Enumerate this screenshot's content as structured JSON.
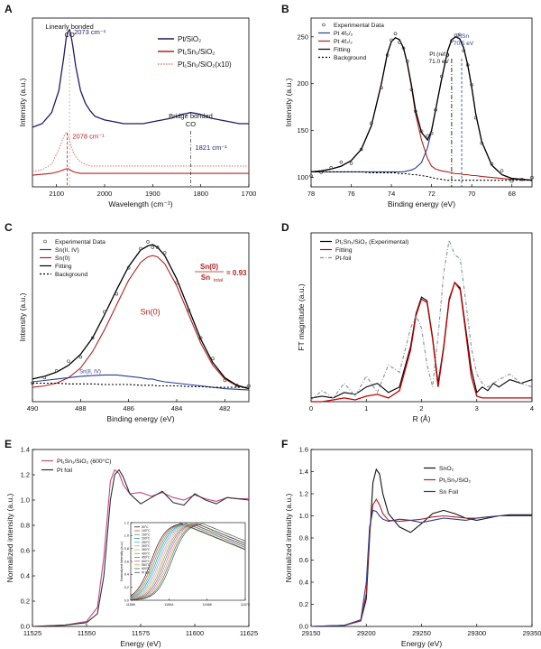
{
  "figure": {
    "panel_letters": [
      "A",
      "B",
      "C",
      "D",
      "E",
      "F"
    ]
  },
  "chart_data": [
    {
      "id": "A",
      "type": "line",
      "xlabel": "Wavelength (cm⁻¹)",
      "ylabel": "Intensity (a.u.)",
      "xlim": [
        2150,
        1700
      ],
      "xticks": [
        2100,
        2000,
        1900,
        1800,
        1700
      ],
      "x": [
        2150,
        2130,
        2110,
        2095,
        2085,
        2080,
        2076,
        2073,
        2070,
        2066,
        2060,
        2050,
        2040,
        2030,
        2020,
        2000,
        1980,
        1960,
        1940,
        1920,
        1900,
        1880,
        1860,
        1840,
        1830,
        1821,
        1810,
        1800,
        1790,
        1780,
        1760,
        1740,
        1720,
        1700
      ],
      "series": [
        {
          "name": "Pt/SiO₂",
          "color": "#1f1a66",
          "values": [
            0.3,
            0.32,
            0.38,
            0.5,
            0.68,
            0.78,
            0.82,
            0.83,
            0.8,
            0.74,
            0.63,
            0.5,
            0.43,
            0.39,
            0.36,
            0.34,
            0.33,
            0.32,
            0.32,
            0.32,
            0.33,
            0.34,
            0.35,
            0.37,
            0.375,
            0.38,
            0.375,
            0.37,
            0.36,
            0.35,
            0.34,
            0.33,
            0.32,
            0.32
          ]
        },
        {
          "name": "Pt₁Sn₁/SiO₂",
          "color": "#b22222",
          "values": [
            0.04,
            0.045,
            0.05,
            0.06,
            0.07,
            0.075,
            0.075,
            0.072,
            0.066,
            0.06,
            0.055,
            0.05,
            0.05,
            0.05,
            0.05,
            0.05,
            0.05,
            0.05,
            0.05,
            0.05,
            0.05,
            0.05,
            0.05,
            0.05,
            0.05,
            0.05,
            0.05,
            0.05,
            0.05,
            0.05,
            0.05,
            0.05,
            0.05,
            0.05
          ]
        },
        {
          "name": "Pt₁Sn₁/SiO₂(x10)",
          "color": "#e07f6a",
          "values": [
            0.06,
            0.07,
            0.1,
            0.18,
            0.25,
            0.27,
            0.26,
            0.23,
            0.2,
            0.17,
            0.14,
            0.11,
            0.1,
            0.09,
            0.09,
            0.09,
            0.09,
            0.09,
            0.09,
            0.09,
            0.09,
            0.09,
            0.09,
            0.09,
            0.09,
            0.09,
            0.09,
            0.09,
            0.09,
            0.09,
            0.09,
            0.09,
            0.09,
            0.09
          ]
        }
      ],
      "annotations": {
        "linear_title": "Linearly bonded",
        "linear_co": "CO",
        "peak_blue": "2073 cm⁻¹",
        "peak_red": "2078 cm⁻¹",
        "bridge_title": "Bridge bonded",
        "bridge_co": "CO",
        "peak_bridge": "1821 cm⁻¹"
      }
    },
    {
      "id": "B",
      "type": "line",
      "xlabel": "Binding energy (eV)",
      "ylabel": "Intensity (a.u.)",
      "xlim": [
        78,
        67
      ],
      "ylim": [
        90,
        270
      ],
      "xticks": [
        78,
        76,
        74,
        72,
        70,
        68
      ],
      "yticks": [
        100,
        150,
        200,
        250
      ],
      "legend": [
        "Experimental Data",
        "Pt 4f₅/₂",
        "Pt 4f₇/₂",
        "Fitting",
        "Background"
      ],
      "x": [
        78,
        77.5,
        77,
        76.5,
        76,
        75.5,
        75,
        74.5,
        74.2,
        74,
        73.8,
        73.6,
        73.4,
        73.2,
        73,
        72.8,
        72.5,
        72.2,
        72,
        71.8,
        71.5,
        71.2,
        71,
        70.8,
        70.6,
        70.4,
        70.2,
        70,
        69.8,
        69.5,
        69,
        68.5,
        68,
        67.5,
        67
      ],
      "series": [
        {
          "name": "Pt 4f₇/₂",
          "color": "#b22222",
          "values": [
            106,
            107,
            109,
            112,
            118,
            130,
            155,
            200,
            232,
            245,
            249,
            247,
            238,
            220,
            196,
            168,
            140,
            120,
            112,
            109,
            107,
            106,
            105,
            104,
            104,
            103,
            103,
            102,
            102,
            101,
            100,
            99,
            98,
            98,
            97
          ]
        },
        {
          "name": "Pt 4f₅/₂",
          "color": "#2a3d8f",
          "values": [
            106,
            106,
            106,
            106,
            106,
            106,
            106,
            106,
            106,
            106,
            106,
            106,
            106,
            107,
            108,
            110,
            116,
            132,
            150,
            172,
            205,
            235,
            247,
            250,
            248,
            238,
            220,
            196,
            168,
            138,
            113,
            103,
            99,
            98,
            97
          ]
        },
        {
          "name": "Fitting",
          "color": "#000000",
          "values": [
            106,
            107,
            109,
            112,
            118,
            130,
            155,
            200,
            232,
            245,
            249,
            247,
            238,
            221,
            198,
            172,
            148,
            140,
            150,
            172,
            205,
            235,
            247,
            250,
            248,
            238,
            220,
            196,
            168,
            138,
            113,
            103,
            99,
            98,
            97
          ]
        },
        {
          "name": "Background",
          "color": "#000000",
          "values": [
            106,
            106,
            106,
            106,
            106,
            106,
            105,
            105,
            105,
            105,
            105,
            104,
            104,
            104,
            103,
            103,
            102,
            101,
            100,
            99,
            98,
            97,
            97,
            97,
            97,
            97,
            97,
            97,
            97,
            97,
            97,
            97,
            97,
            97,
            97
          ]
        }
      ],
      "annotations": {
        "ref_line": "Pt (ref.)",
        "ref_value": "71.0 eV",
        "ptsn_label": "PtSn",
        "ptsn_value": "70.5 eV"
      }
    },
    {
      "id": "C",
      "type": "line",
      "xlabel": "Binding energy (eV)",
      "ylabel": "Intensity (a.u.)",
      "xlim": [
        490,
        481
      ],
      "xticks": [
        490,
        488,
        486,
        484,
        482
      ],
      "legend": [
        "Experimental Data",
        "Sn(II, IV)",
        "Sn(0)",
        "Fitting",
        "Background"
      ],
      "x": [
        490,
        489.5,
        489,
        488.5,
        488,
        487.5,
        487,
        486.5,
        486,
        485.5,
        485.2,
        485,
        484.8,
        484.5,
        484,
        483.5,
        483,
        482.5,
        482,
        481.5,
        481
      ],
      "series": [
        {
          "name": "Sn(0)",
          "color": "#b22222",
          "values": [
            0.02,
            0.03,
            0.05,
            0.09,
            0.16,
            0.28,
            0.44,
            0.62,
            0.8,
            0.93,
            0.97,
            0.98,
            0.97,
            0.92,
            0.76,
            0.55,
            0.34,
            0.18,
            0.08,
            0.03,
            0.01
          ]
        },
        {
          "name": "Sn(II, IV)",
          "color": "#2a3d8f",
          "values": [
            0.06,
            0.07,
            0.08,
            0.09,
            0.1,
            0.105,
            0.11,
            0.11,
            0.1,
            0.09,
            0.08,
            0.08,
            0.07,
            0.06,
            0.05,
            0.04,
            0.03,
            0.02,
            0.01,
            0.005,
            0.0
          ]
        },
        {
          "name": "Fitting",
          "color": "#000000",
          "values": [
            0.08,
            0.1,
            0.13,
            0.18,
            0.26,
            0.38,
            0.55,
            0.73,
            0.9,
            1.02,
            1.05,
            1.06,
            1.04,
            0.98,
            0.81,
            0.59,
            0.37,
            0.2,
            0.09,
            0.035,
            0.01
          ]
        },
        {
          "name": "Background",
          "color": "#000000",
          "values": [
            0.05,
            0.05,
            0.05,
            0.045,
            0.045,
            0.045,
            0.04,
            0.04,
            0.04,
            0.035,
            0.035,
            0.035,
            0.03,
            0.03,
            0.03,
            0.025,
            0.025,
            0.02,
            0.02,
            0.02,
            0.02
          ]
        }
      ],
      "annotations": {
        "sn0_label": "Sn(0)",
        "sniv_label": "Sn(II, IV)",
        "ratio_num": "Sn(0)",
        "ratio_den": "Sn",
        "ratio_den_sub": "total",
        "ratio_value": "= 0.93"
      }
    },
    {
      "id": "D",
      "type": "line",
      "xlabel": "R (Å)",
      "ylabel": "FT magnitude (a.u.)",
      "xlim": [
        0,
        4
      ],
      "ylim": [
        0,
        0.92
      ],
      "xticks": [
        0,
        1,
        2,
        3,
        4
      ],
      "legend": [
        "Pt₁Sn₁/SiO₂ (Experimental)",
        "Fitting",
        "Pt-foil"
      ],
      "x": [
        0,
        0.2,
        0.4,
        0.6,
        0.8,
        1.0,
        1.2,
        1.4,
        1.6,
        1.8,
        1.9,
        2.0,
        2.1,
        2.2,
        2.3,
        2.4,
        2.5,
        2.6,
        2.7,
        2.8,
        2.9,
        3.0,
        3.1,
        3.2,
        3.3,
        3.4,
        3.6,
        3.8,
        4.0
      ],
      "series": [
        {
          "name": "Pt₁Sn₁/SiO₂ (Experimental)",
          "color": "#000000",
          "values": [
            0.02,
            0.03,
            0.02,
            0.05,
            0.04,
            0.08,
            0.1,
            0.05,
            0.08,
            0.3,
            0.48,
            0.57,
            0.55,
            0.35,
            0.1,
            0.3,
            0.56,
            0.65,
            0.62,
            0.4,
            0.18,
            0.05,
            0.08,
            0.06,
            0.1,
            0.08,
            0.12,
            0.1,
            0.12
          ]
        },
        {
          "name": "Fitting",
          "color": "#c00000",
          "values": [
            0.0,
            0.0,
            0.01,
            0.02,
            0.01,
            0.03,
            0.04,
            0.02,
            0.06,
            0.28,
            0.47,
            0.56,
            0.54,
            0.34,
            0.08,
            0.29,
            0.55,
            0.65,
            0.61,
            0.38,
            0.14,
            0.03,
            0.02,
            0.02,
            0.02,
            0.02,
            0.02,
            0.02,
            0.02
          ]
        },
        {
          "name": "Pt-foil",
          "color": "#8890a0",
          "values": [
            0.01,
            0.06,
            0.02,
            0.1,
            0.03,
            0.14,
            0.05,
            0.2,
            0.16,
            0.4,
            0.47,
            0.4,
            0.2,
            0.08,
            0.36,
            0.7,
            0.88,
            0.8,
            0.78,
            0.55,
            0.3,
            0.15,
            0.1,
            0.08,
            0.1,
            0.12,
            0.15,
            0.1,
            0.08
          ]
        }
      ]
    },
    {
      "id": "E",
      "type": "line",
      "xlabel": "Energy (eV)",
      "ylabel": "Normalized intensity (a.u.)",
      "xlim": [
        11525,
        11625
      ],
      "ylim": [
        0,
        1.4
      ],
      "xticks": [
        11525,
        11550,
        11575,
        11600,
        11625
      ],
      "yticks": [
        0.0,
        0.2,
        0.4,
        0.6,
        0.8,
        1.0,
        1.2,
        1.4
      ],
      "legend": [
        "Pt₁Sn₁/SiO₂ (600°C)",
        "Pt foil"
      ],
      "x": [
        11525,
        11540,
        11550,
        11555,
        11558,
        11561,
        11563,
        11565,
        11567,
        11570,
        11575,
        11580,
        11585,
        11590,
        11595,
        11600,
        11605,
        11610,
        11615,
        11620,
        11625
      ],
      "series": [
        {
          "name": "Pt₁Sn₁/SiO₂ (600°C)",
          "color": "#c04a8a",
          "values": [
            0.0,
            0.01,
            0.04,
            0.15,
            0.55,
            1.15,
            1.24,
            1.21,
            1.12,
            1.05,
            1.06,
            1.03,
            1.06,
            1.02,
            1.0,
            1.04,
            1.01,
            0.99,
            1.02,
            1.01,
            1.01
          ]
        },
        {
          "name": "Pt foil",
          "color": "#303030",
          "values": [
            0.0,
            0.01,
            0.03,
            0.1,
            0.4,
            1.0,
            1.2,
            1.24,
            1.18,
            1.05,
            0.97,
            1.02,
            1.07,
            0.98,
            0.96,
            1.05,
            1.0,
            0.97,
            1.02,
            1.01,
            1.0
          ]
        }
      ],
      "inset": {
        "xlim": [
          11560,
          11572
        ],
        "ylim": [
          0.0,
          1.2
        ],
        "ylabel": "Normalized intensity (a.u.)",
        "xticks": [
          11560,
          11564,
          11568,
          11572
        ],
        "yticks": [
          0.0,
          0.2,
          0.4,
          0.6,
          0.8,
          1.0,
          1.2
        ],
        "legend": [
          "50°C",
          "100°C",
          "150°C",
          "200°C",
          "250°C",
          "300°C",
          "350°C",
          "400°C",
          "450°C",
          "500°C",
          "550°C",
          "600°C",
          "Pt foil"
        ],
        "legend_colors": [
          "#000000",
          "#d62728",
          "#2ca02c",
          "#1f77b4",
          "#17becf",
          "#e377c2",
          "#bcbd22",
          "#7f7f7f",
          "#8c564b",
          "#9467bd",
          "#ff7f0e",
          "#006d6d",
          "#333333"
        ]
      }
    },
    {
      "id": "F",
      "type": "line",
      "xlabel": "Energy (eV)",
      "ylabel": "Normalized intensity (a.u.)",
      "xlim": [
        29150,
        29350
      ],
      "ylim": [
        0,
        1.6
      ],
      "xticks": [
        29150,
        29200,
        29250,
        29300,
        29350
      ],
      "yticks": [
        0.0,
        0.2,
        0.4,
        0.6,
        0.8,
        1.0,
        1.2,
        1.4,
        1.6
      ],
      "legend": [
        "SnO₂",
        "Pt₁Sn₁/SiO₂",
        "Sn Foil"
      ],
      "x": [
        29150,
        29180,
        29195,
        29200,
        29203,
        29206,
        29209,
        29212,
        29215,
        29220,
        29230,
        29240,
        29250,
        29260,
        29270,
        29280,
        29290,
        29300,
        29310,
        29320,
        29330,
        29340,
        29350
      ],
      "series": [
        {
          "name": "SnO₂",
          "color": "#111111",
          "values": [
            0.0,
            0.01,
            0.05,
            0.25,
            0.8,
            1.3,
            1.42,
            1.38,
            1.2,
            1.02,
            0.9,
            0.85,
            0.93,
            1.02,
            1.05,
            1.02,
            0.98,
            0.96,
            0.98,
            1.0,
            1.01,
            1.01,
            1.01
          ]
        },
        {
          "name": "Pt₁Sn₁/SiO₂",
          "color": "#b22222",
          "values": [
            0.0,
            0.01,
            0.05,
            0.3,
            0.85,
            1.1,
            1.15,
            1.1,
            1.02,
            0.96,
            0.95,
            0.96,
            0.97,
            0.99,
            1.0,
            0.99,
            0.98,
            0.98,
            0.99,
            1.0,
            1.0,
            1.0,
            1.0
          ]
        },
        {
          "name": "Sn Foil",
          "color": "#2a3d8f",
          "values": [
            0.0,
            0.01,
            0.06,
            0.4,
            0.9,
            1.05,
            1.04,
            1.0,
            0.97,
            0.95,
            0.97,
            0.96,
            0.94,
            0.96,
            0.98,
            0.97,
            0.96,
            0.98,
            0.99,
            1.0,
            1.0,
            1.0,
            1.0
          ]
        }
      ]
    }
  ]
}
